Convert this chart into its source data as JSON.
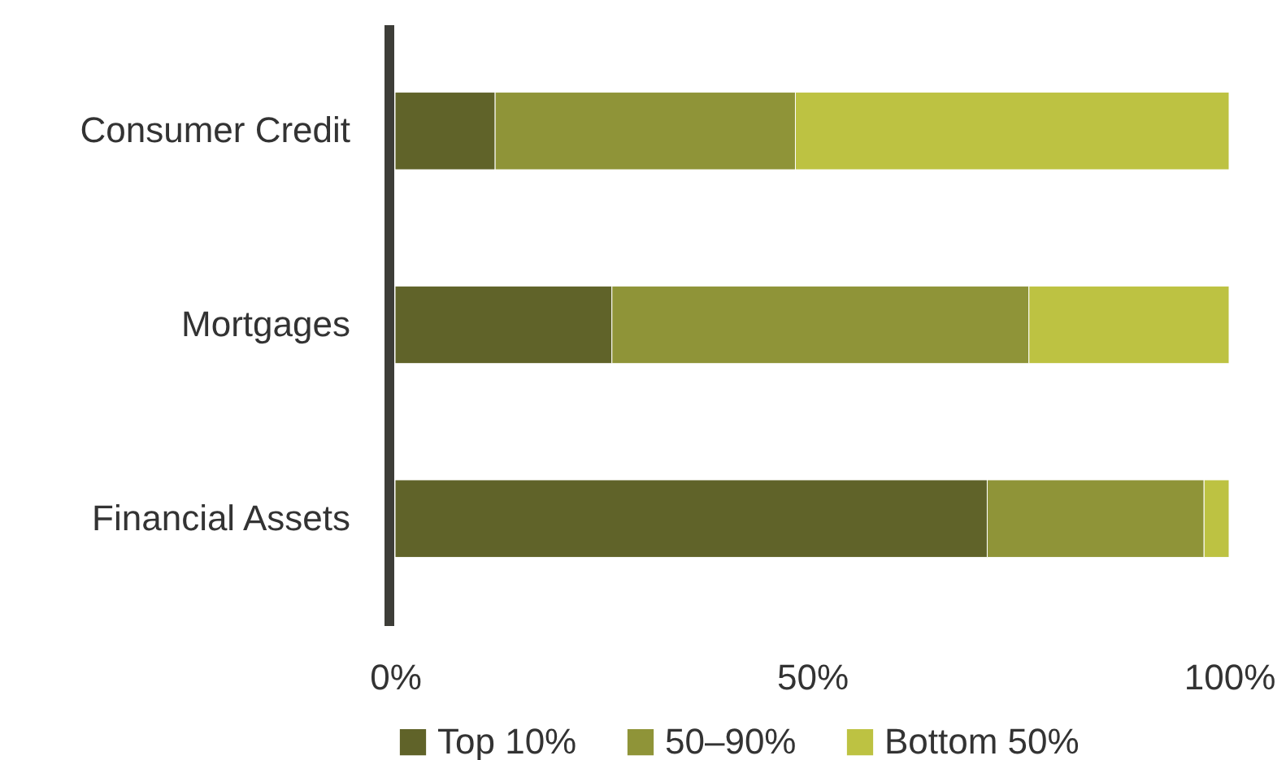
{
  "chart_data": {
    "type": "bar",
    "orientation": "horizontal",
    "stacked": true,
    "categories": [
      "Consumer Credit",
      "Mortgages",
      "Financial Assets"
    ],
    "series": [
      {
        "name": "Top 10%",
        "color": "#606329",
        "values": [
          12,
          26,
          71
        ]
      },
      {
        "name": "50–90%",
        "color": "#8f9438",
        "values": [
          36,
          50,
          26
        ]
      },
      {
        "name": "Bottom 50%",
        "color": "#bdc242",
        "values": [
          52,
          24,
          3
        ]
      }
    ],
    "xlim": [
      0,
      100
    ],
    "xticks": [
      {
        "value": 0,
        "label": "0%"
      },
      {
        "value": 50,
        "label": "50%"
      },
      {
        "value": 100,
        "label": "100%"
      }
    ],
    "grid": false,
    "legend": "bottom"
  }
}
